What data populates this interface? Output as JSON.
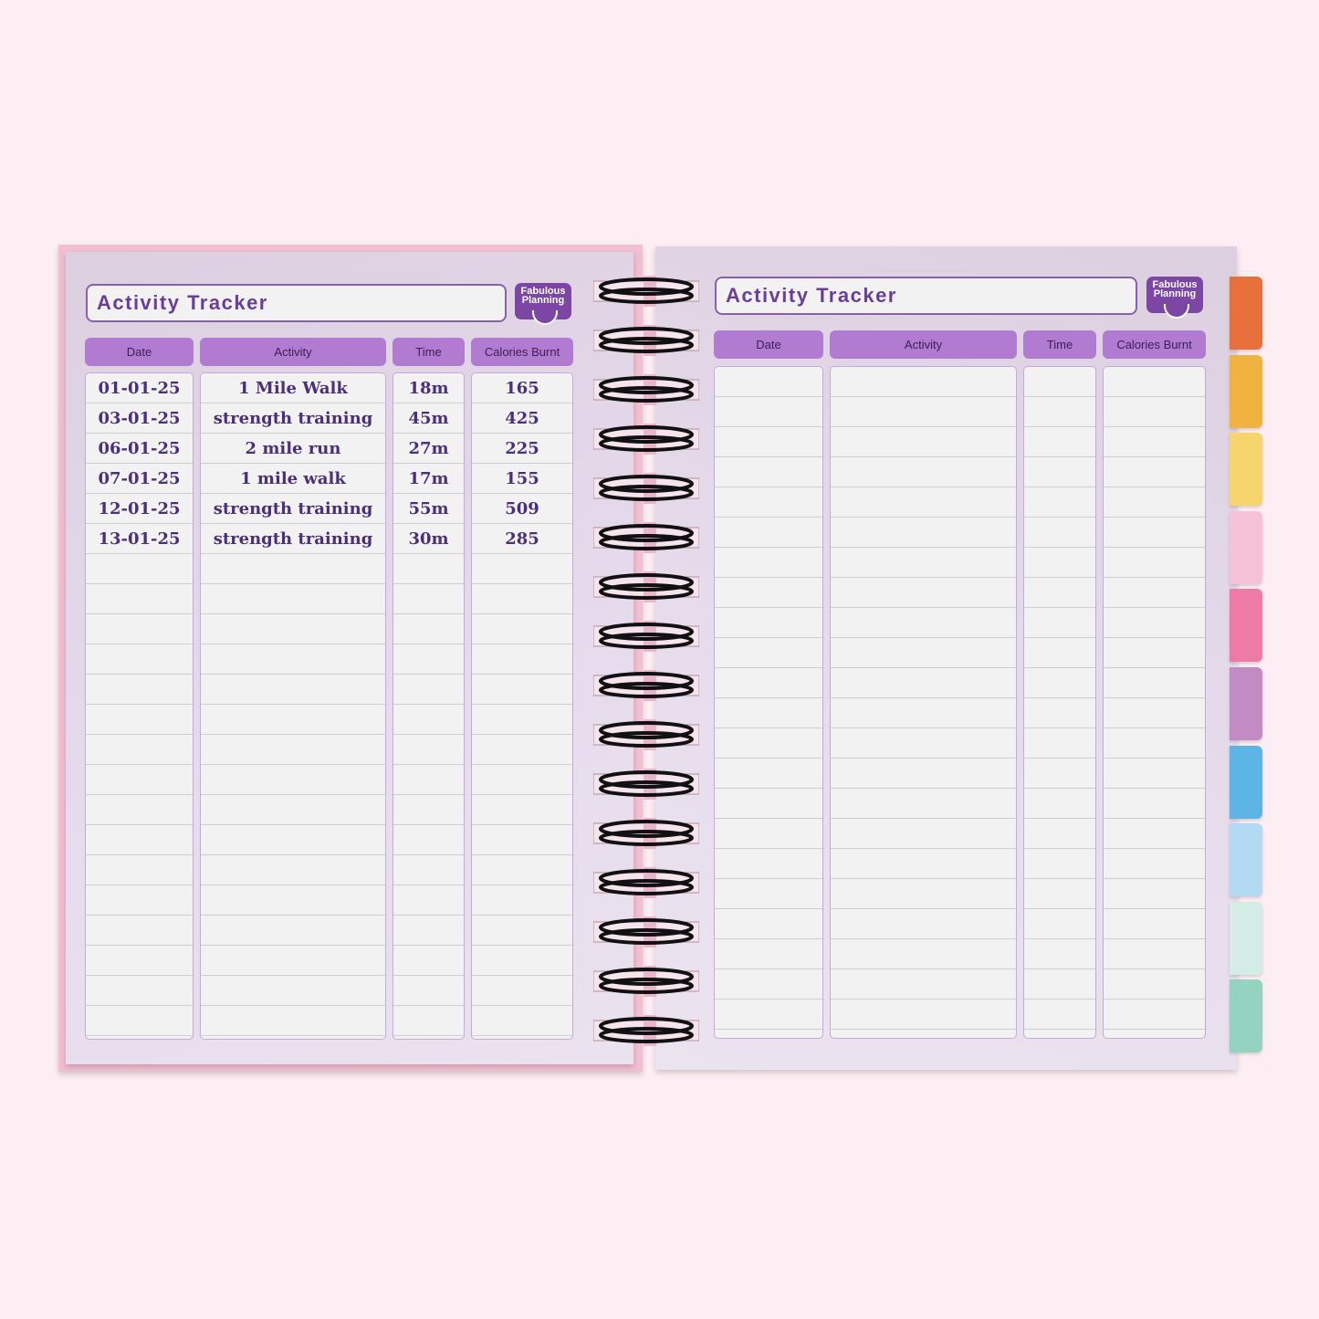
{
  "brand": {
    "logo_text": "Fabulous Planning",
    "accent": "#b07bd1",
    "title_color": "#6b3d9a"
  },
  "left_page": {
    "title": "Activity Tracker",
    "columns": [
      "Date",
      "Activity",
      "Time",
      "Calories Burnt"
    ],
    "rows": [
      [
        "01-01-25",
        "1 Mile Walk",
        "18m",
        "165"
      ],
      [
        "03-01-25",
        "strength training",
        "45m",
        "425"
      ],
      [
        "06-01-25",
        "2 mile run",
        "27m",
        "225"
      ],
      [
        "07-01-25",
        "1 mile walk",
        "17m",
        "155"
      ],
      [
        "12-01-25",
        "strength training",
        "55m",
        "509"
      ],
      [
        "13-01-25",
        "strength training",
        "30m",
        "285"
      ]
    ]
  },
  "right_page": {
    "title": "Activity Tracker",
    "columns": [
      "Date",
      "Activity",
      "Time",
      "Calories Burnt"
    ],
    "rows": []
  },
  "tabs": [
    "#e8703a",
    "#f0b33f",
    "#f6d56c",
    "#f5c2d8",
    "#ee7ba6",
    "#c28bc3",
    "#5db5e6",
    "#b3daf3",
    "#d4ece6",
    "#93d3c0"
  ]
}
